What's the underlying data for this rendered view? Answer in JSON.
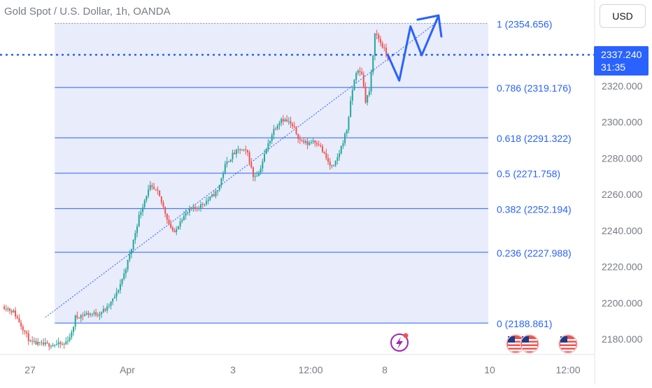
{
  "chart_title": "Gold Spot / U.S. Dollar, 1h, OANDA",
  "currency_button": "USD",
  "last_price": {
    "price": "2337.240",
    "countdown": "31:35"
  },
  "colors": {
    "fib_line": "#2962ff",
    "fib_zone": "#e8ecfb",
    "bull": "#26a69a",
    "bear": "#ef5350",
    "annotation": "#2962ff"
  },
  "icons": [
    "lightning-event-icon",
    "us-flag-event-icon",
    "us-flag-event-icon",
    "us-flag-event-icon"
  ],
  "chart_data": {
    "type": "candlestick",
    "title": "Gold Spot / U.S. Dollar, 1h, OANDA",
    "x_tick_labels": [
      "27",
      "Apr",
      "3",
      "12:00",
      "8",
      "10",
      "12:00"
    ],
    "y_tick_labels": [
      "2320.000",
      "2300.000",
      "2280.000",
      "2260.000",
      "2240.000",
      "2220.000",
      "2200.000",
      "2180.000"
    ],
    "y_ticks": [
      2320,
      2300,
      2280,
      2260,
      2240,
      2220,
      2200,
      2180
    ],
    "ylim": [
      2171,
      2366
    ],
    "last_price": 2337.24,
    "fibonacci_levels": [
      {
        "ratio": 1,
        "price": 2354.656,
        "label": "1 (2354.656)"
      },
      {
        "ratio": 0.786,
        "price": 2319.176,
        "label": "0.786 (2319.176)"
      },
      {
        "ratio": 0.618,
        "price": 2291.322,
        "label": "0.618 (2291.322)"
      },
      {
        "ratio": 0.5,
        "price": 2271.758,
        "label": "0.5 (2271.758)"
      },
      {
        "ratio": 0.382,
        "price": 2252.194,
        "label": "0.382 (2252.194)"
      },
      {
        "ratio": 0.236,
        "price": 2227.988,
        "label": "0.236 (2227.988)"
      },
      {
        "ratio": 0,
        "price": 2188.861,
        "label": "0 (2188.861)"
      }
    ],
    "candle_anchors": [
      [
        0,
        2198
      ],
      [
        5,
        2195
      ],
      [
        10,
        2186
      ],
      [
        14,
        2178
      ],
      [
        20,
        2177
      ],
      [
        26,
        2177
      ],
      [
        32,
        2177
      ],
      [
        36,
        2183
      ],
      [
        38,
        2192
      ],
      [
        44,
        2194
      ],
      [
        50,
        2194
      ],
      [
        55,
        2197
      ],
      [
        60,
        2205
      ],
      [
        64,
        2216
      ],
      [
        68,
        2230
      ],
      [
        72,
        2248
      ],
      [
        76,
        2260
      ],
      [
        78,
        2264
      ],
      [
        82,
        2261
      ],
      [
        86,
        2250
      ],
      [
        88,
        2244
      ],
      [
        91,
        2238
      ],
      [
        94,
        2246
      ],
      [
        99,
        2251
      ],
      [
        105,
        2254
      ],
      [
        110,
        2258
      ],
      [
        114,
        2262
      ],
      [
        118,
        2276
      ],
      [
        122,
        2282
      ],
      [
        126,
        2285
      ],
      [
        130,
        2283
      ],
      [
        133,
        2270
      ],
      [
        136,
        2272
      ],
      [
        140,
        2285
      ],
      [
        144,
        2296
      ],
      [
        148,
        2302
      ],
      [
        152,
        2300
      ],
      [
        155,
        2296
      ],
      [
        158,
        2290
      ],
      [
        162,
        2288
      ],
      [
        165,
        2290
      ],
      [
        168,
        2288
      ],
      [
        171,
        2282
      ],
      [
        174,
        2276
      ],
      [
        176,
        2275
      ],
      [
        179,
        2283
      ],
      [
        183,
        2296
      ],
      [
        186,
        2318
      ],
      [
        188,
        2328
      ],
      [
        191,
        2327
      ],
      [
        193,
        2312
      ],
      [
        195,
        2317
      ],
      [
        197,
        2336
      ],
      [
        198,
        2350
      ],
      [
        200,
        2346
      ],
      [
        203,
        2340
      ],
      [
        205,
        2336
      ]
    ],
    "projection_path": [
      [
        205,
        2337
      ],
      [
        211,
        2323
      ],
      [
        217,
        2353
      ],
      [
        223,
        2337
      ],
      [
        232,
        2359
      ]
    ],
    "trendline": [
      [
        22,
        2192
      ],
      [
        232,
        2356
      ]
    ],
    "annotations": [
      "zigzag projection arrow",
      "dotted rising trendline",
      "fibonacci retracement"
    ]
  }
}
